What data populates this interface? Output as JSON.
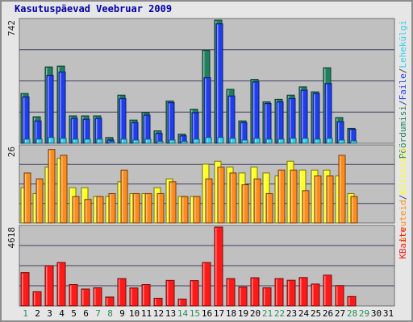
{
  "title": "Kasutuspäevad Veebruar 2009",
  "colors": {
    "background": "#e6e6e6",
    "plot": "#c0c0c0",
    "grid": "#404060",
    "pooordumisi": "#1f7f5f",
    "lehekulgi": "#1f3fef",
    "faile": "#2fcfef",
    "kulastusi": "#ffff20",
    "arvuteid": "#ff8c1a",
    "kbaite": "#ff1a1a",
    "weekday_label": "#000000",
    "weekend_label": "#2a8a5a"
  },
  "chart_data": [
    {
      "type": "bar",
      "panel": "top",
      "y_max_label": "742",
      "ylim": [
        0,
        742
      ],
      "right_labels": [
        {
          "text": "Pöördumisi",
          "color": "#1f7f5f"
        },
        {
          "text": "/",
          "color": "#404060"
        },
        {
          "text": "Faile",
          "color": "#1f3fef"
        },
        {
          "text": "/",
          "color": "#404060"
        },
        {
          "text": "Lehekülgi",
          "color": "#2fcfef"
        }
      ],
      "categories": [
        "1",
        "2",
        "3",
        "4",
        "5",
        "6",
        "7",
        "8",
        "9",
        "10",
        "11",
        "12",
        "13",
        "14",
        "15",
        "16",
        "17",
        "18",
        "19",
        "20",
        "21",
        "22",
        "23",
        "24",
        "25",
        "26",
        "27",
        "28",
        "29",
        "30",
        "31"
      ],
      "series": [
        {
          "name": "Pöördumisi",
          "values": [
            300,
            160,
            460,
            465,
            165,
            165,
            165,
            35,
            290,
            140,
            185,
            75,
            255,
            55,
            205,
            560,
            742,
            325,
            135,
            385,
            250,
            265,
            290,
            340,
            310,
            455,
            155,
            90,
            0,
            0,
            0
          ]
        },
        {
          "name": "Faile",
          "values": [
            280,
            135,
            410,
            430,
            150,
            145,
            150,
            20,
            270,
            125,
            170,
            60,
            245,
            45,
            185,
            395,
            720,
            285,
            125,
            370,
            240,
            250,
            270,
            320,
            300,
            360,
            130,
            85,
            0,
            0,
            0
          ]
        },
        {
          "name": "Lehekülgi",
          "values": [
            25,
            25,
            35,
            30,
            25,
            25,
            25,
            8,
            25,
            20,
            25,
            12,
            20,
            12,
            25,
            35,
            35,
            30,
            20,
            30,
            25,
            25,
            30,
            30,
            25,
            30,
            20,
            15,
            0,
            0,
            0
          ]
        }
      ]
    },
    {
      "type": "bar",
      "panel": "middle",
      "y_max_label": "26",
      "ylim": [
        0,
        26
      ],
      "right_labels": [
        {
          "text": "Arvuteid",
          "color": "#ff8c1a"
        },
        {
          "text": "/",
          "color": "#404060"
        },
        {
          "text": "Külastusi",
          "color": "#ffff20"
        }
      ],
      "categories": [
        "1",
        "2",
        "3",
        "4",
        "5",
        "6",
        "7",
        "8",
        "9",
        "10",
        "11",
        "12",
        "13",
        "14",
        "15",
        "16",
        "17",
        "18",
        "19",
        "20",
        "21",
        "22",
        "23",
        "24",
        "25",
        "26",
        "27",
        "28",
        "29",
        "30",
        "31"
      ],
      "series": [
        {
          "name": "Külastusi",
          "values": [
            12,
            10,
            19,
            22,
            12,
            12,
            9,
            9,
            14,
            10,
            10,
            12,
            15,
            9,
            9,
            20,
            21,
            19,
            17,
            19,
            17,
            16,
            21,
            18,
            18,
            18,
            16,
            10,
            0,
            0,
            0
          ]
        },
        {
          "name": "Arvuteid",
          "values": [
            17,
            15,
            25,
            23,
            9,
            8,
            9,
            10,
            18,
            10,
            10,
            10,
            14,
            9,
            9,
            15,
            19,
            17,
            13,
            15,
            10,
            18,
            18,
            11,
            16,
            16,
            23,
            9,
            0,
            0,
            0
          ]
        }
      ]
    },
    {
      "type": "bar",
      "panel": "bottom",
      "y_max_label": "4618",
      "ylim": [
        0,
        4618
      ],
      "right_labels": [
        {
          "text": "KBaite",
          "color": "#ff1a1a"
        }
      ],
      "categories": [
        "1",
        "2",
        "3",
        "4",
        "5",
        "6",
        "7",
        "8",
        "9",
        "10",
        "11",
        "12",
        "13",
        "14",
        "15",
        "16",
        "17",
        "18",
        "19",
        "20",
        "21",
        "22",
        "23",
        "24",
        "25",
        "26",
        "27",
        "28",
        "29",
        "30",
        "31"
      ],
      "series": [
        {
          "name": "KBaite",
          "values": [
            1950,
            830,
            2350,
            2540,
            1250,
            990,
            1060,
            520,
            1600,
            1050,
            1250,
            450,
            1490,
            400,
            1480,
            2540,
            4618,
            1600,
            1110,
            1650,
            1060,
            1600,
            1500,
            1660,
            1280,
            1800,
            1190,
            550,
            0,
            0,
            0
          ]
        }
      ]
    }
  ],
  "x_labels": [
    {
      "text": "1",
      "weekend": true
    },
    {
      "text": "2",
      "weekend": false
    },
    {
      "text": "3",
      "weekend": false
    },
    {
      "text": "4",
      "weekend": false
    },
    {
      "text": "5",
      "weekend": false
    },
    {
      "text": "6",
      "weekend": false
    },
    {
      "text": "7",
      "weekend": true
    },
    {
      "text": "8",
      "weekend": true
    },
    {
      "text": "9",
      "weekend": false
    },
    {
      "text": "10",
      "weekend": false
    },
    {
      "text": "11",
      "weekend": false
    },
    {
      "text": "12",
      "weekend": false
    },
    {
      "text": "13",
      "weekend": false
    },
    {
      "text": "14",
      "weekend": true
    },
    {
      "text": "15",
      "weekend": true
    },
    {
      "text": "16",
      "weekend": false
    },
    {
      "text": "17",
      "weekend": false
    },
    {
      "text": "18",
      "weekend": false
    },
    {
      "text": "19",
      "weekend": false
    },
    {
      "text": "20",
      "weekend": false
    },
    {
      "text": "21",
      "weekend": true
    },
    {
      "text": "22",
      "weekend": true
    },
    {
      "text": "23",
      "weekend": false
    },
    {
      "text": "24",
      "weekend": false
    },
    {
      "text": "25",
      "weekend": false
    },
    {
      "text": "26",
      "weekend": false
    },
    {
      "text": "27",
      "weekend": false
    },
    {
      "text": "28",
      "weekend": true
    },
    {
      "text": "29",
      "weekend": true
    },
    {
      "text": "30",
      "weekend": false
    },
    {
      "text": "31",
      "weekend": false
    }
  ]
}
